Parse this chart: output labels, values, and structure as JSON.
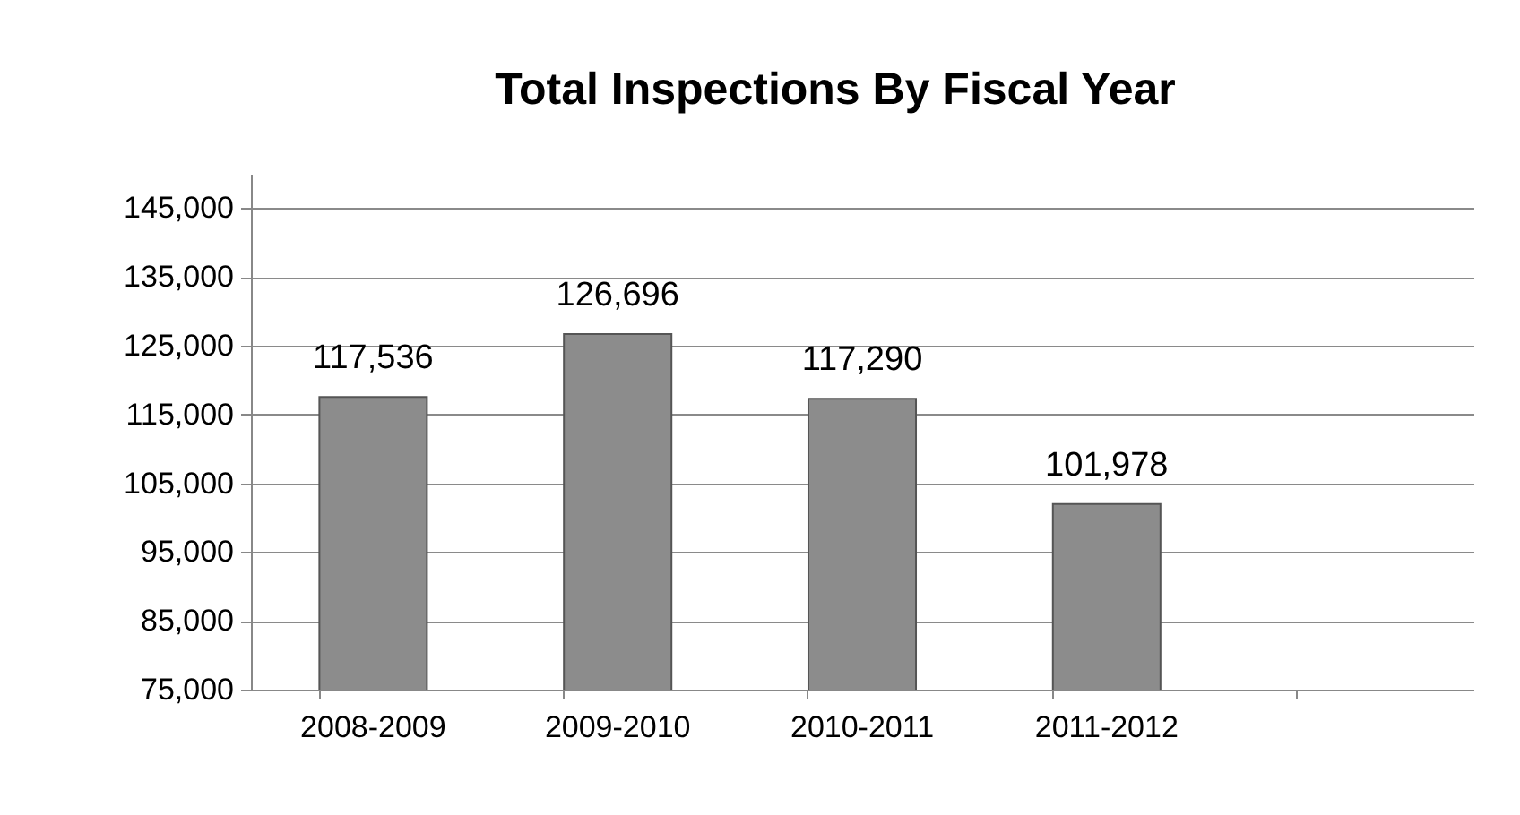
{
  "chart_data": {
    "type": "bar",
    "title": "Total Inspections By Fiscal Year",
    "categories": [
      "2008-2009",
      "2009-2010",
      "2010-2011",
      "2011-2012",
      null
    ],
    "values": [
      117536,
      126696,
      117290,
      101978,
      null
    ],
    "color": "#8c8c8c",
    "ylim": [
      75000,
      150000
    ],
    "yticks": [
      {
        "value": 75000,
        "label": "75,000"
      },
      {
        "value": 85000,
        "label": "85,000"
      },
      {
        "value": 95000,
        "label": "95,000"
      },
      {
        "value": 105000,
        "label": "105,000"
      },
      {
        "value": 115000,
        "label": "115,000"
      },
      {
        "value": 125000,
        "label": "125,000"
      },
      {
        "value": 135000,
        "label": "135,000"
      },
      {
        "value": 145000,
        "label": "145,000"
      }
    ],
    "value_labels": [
      "117,536",
      "126,696",
      "117,290",
      "101,978",
      null
    ],
    "grid": "y"
  }
}
